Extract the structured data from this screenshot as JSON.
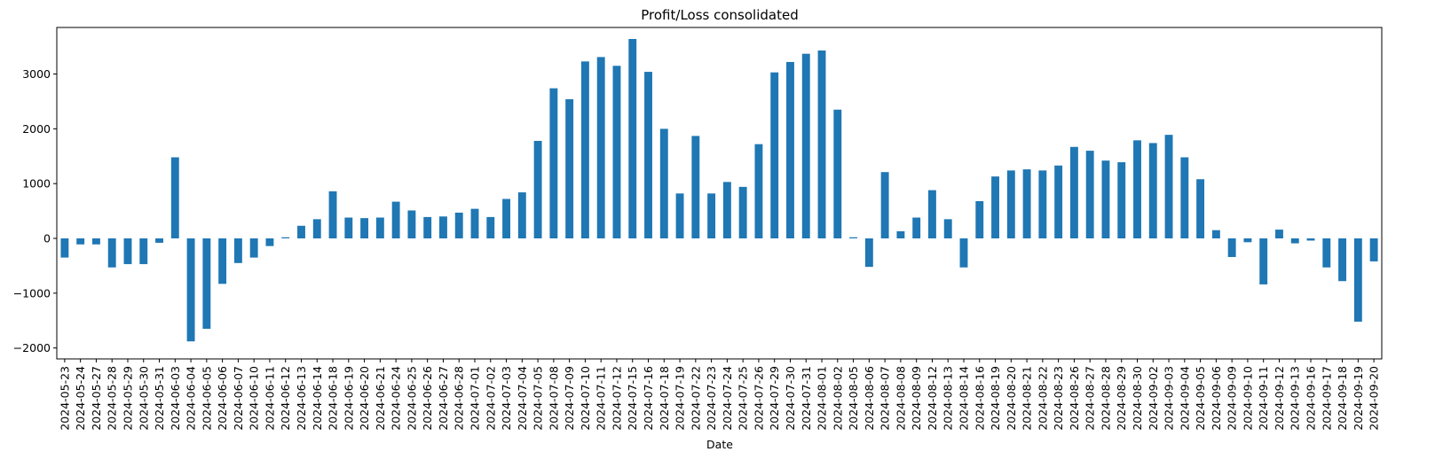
{
  "chart_data": {
    "type": "bar",
    "title": "Profit/Loss consolidated",
    "xlabel": "Date",
    "ylabel": "",
    "ylim": [
      -2200,
      3850
    ],
    "yticks": [
      -2000,
      -1000,
      0,
      1000,
      2000,
      3000
    ],
    "grid": false,
    "legend": "none",
    "bar_color": "#1f77b4",
    "categories": [
      "2024-05-23",
      "2024-05-24",
      "2024-05-27",
      "2024-05-28",
      "2024-05-29",
      "2024-05-30",
      "2024-05-31",
      "2024-06-03",
      "2024-06-04",
      "2024-06-05",
      "2024-06-06",
      "2024-06-07",
      "2024-06-10",
      "2024-06-11",
      "2024-06-12",
      "2024-06-13",
      "2024-06-14",
      "2024-06-18",
      "2024-06-19",
      "2024-06-20",
      "2024-06-21",
      "2024-06-24",
      "2024-06-25",
      "2024-06-26",
      "2024-06-27",
      "2024-06-28",
      "2024-07-01",
      "2024-07-02",
      "2024-07-03",
      "2024-07-04",
      "2024-07-05",
      "2024-07-08",
      "2024-07-09",
      "2024-07-10",
      "2024-07-11",
      "2024-07-12",
      "2024-07-15",
      "2024-07-16",
      "2024-07-18",
      "2024-07-19",
      "2024-07-22",
      "2024-07-23",
      "2024-07-24",
      "2024-07-25",
      "2024-07-26",
      "2024-07-29",
      "2024-07-30",
      "2024-07-31",
      "2024-08-01",
      "2024-08-02",
      "2024-08-05",
      "2024-08-06",
      "2024-08-07",
      "2024-08-08",
      "2024-08-09",
      "2024-08-12",
      "2024-08-13",
      "2024-08-14",
      "2024-08-16",
      "2024-08-19",
      "2024-08-20",
      "2024-08-21",
      "2024-08-22",
      "2024-08-23",
      "2024-08-26",
      "2024-08-27",
      "2024-08-28",
      "2024-08-29",
      "2024-08-30",
      "2024-09-02",
      "2024-09-03",
      "2024-09-04",
      "2024-09-05",
      "2024-09-06",
      "2024-09-09",
      "2024-09-10",
      "2024-09-11",
      "2024-09-12",
      "2024-09-13",
      "2024-09-16",
      "2024-09-17",
      "2024-09-18",
      "2024-09-19",
      "2024-09-20"
    ],
    "values": [
      -350,
      -110,
      -110,
      -530,
      -470,
      -470,
      -80,
      1480,
      -1880,
      -1650,
      -830,
      -450,
      -350,
      -140,
      20,
      230,
      350,
      860,
      380,
      370,
      380,
      670,
      510,
      390,
      400,
      470,
      540,
      390,
      720,
      840,
      1780,
      2740,
      2540,
      3230,
      3310,
      3150,
      3640,
      3040,
      2000,
      820,
      1870,
      820,
      1030,
      940,
      1720,
      3030,
      3220,
      3370,
      3430,
      2350,
      20,
      -520,
      1210,
      130,
      380,
      880,
      350,
      -530,
      680,
      1130,
      1240,
      1260,
      1240,
      1330,
      1670,
      1600,
      1420,
      1390,
      1790,
      1740,
      1890,
      1480,
      1080,
      150,
      -340,
      -70,
      -840,
      160,
      -90,
      -40,
      -530,
      -780,
      -1520,
      -420
    ]
  }
}
